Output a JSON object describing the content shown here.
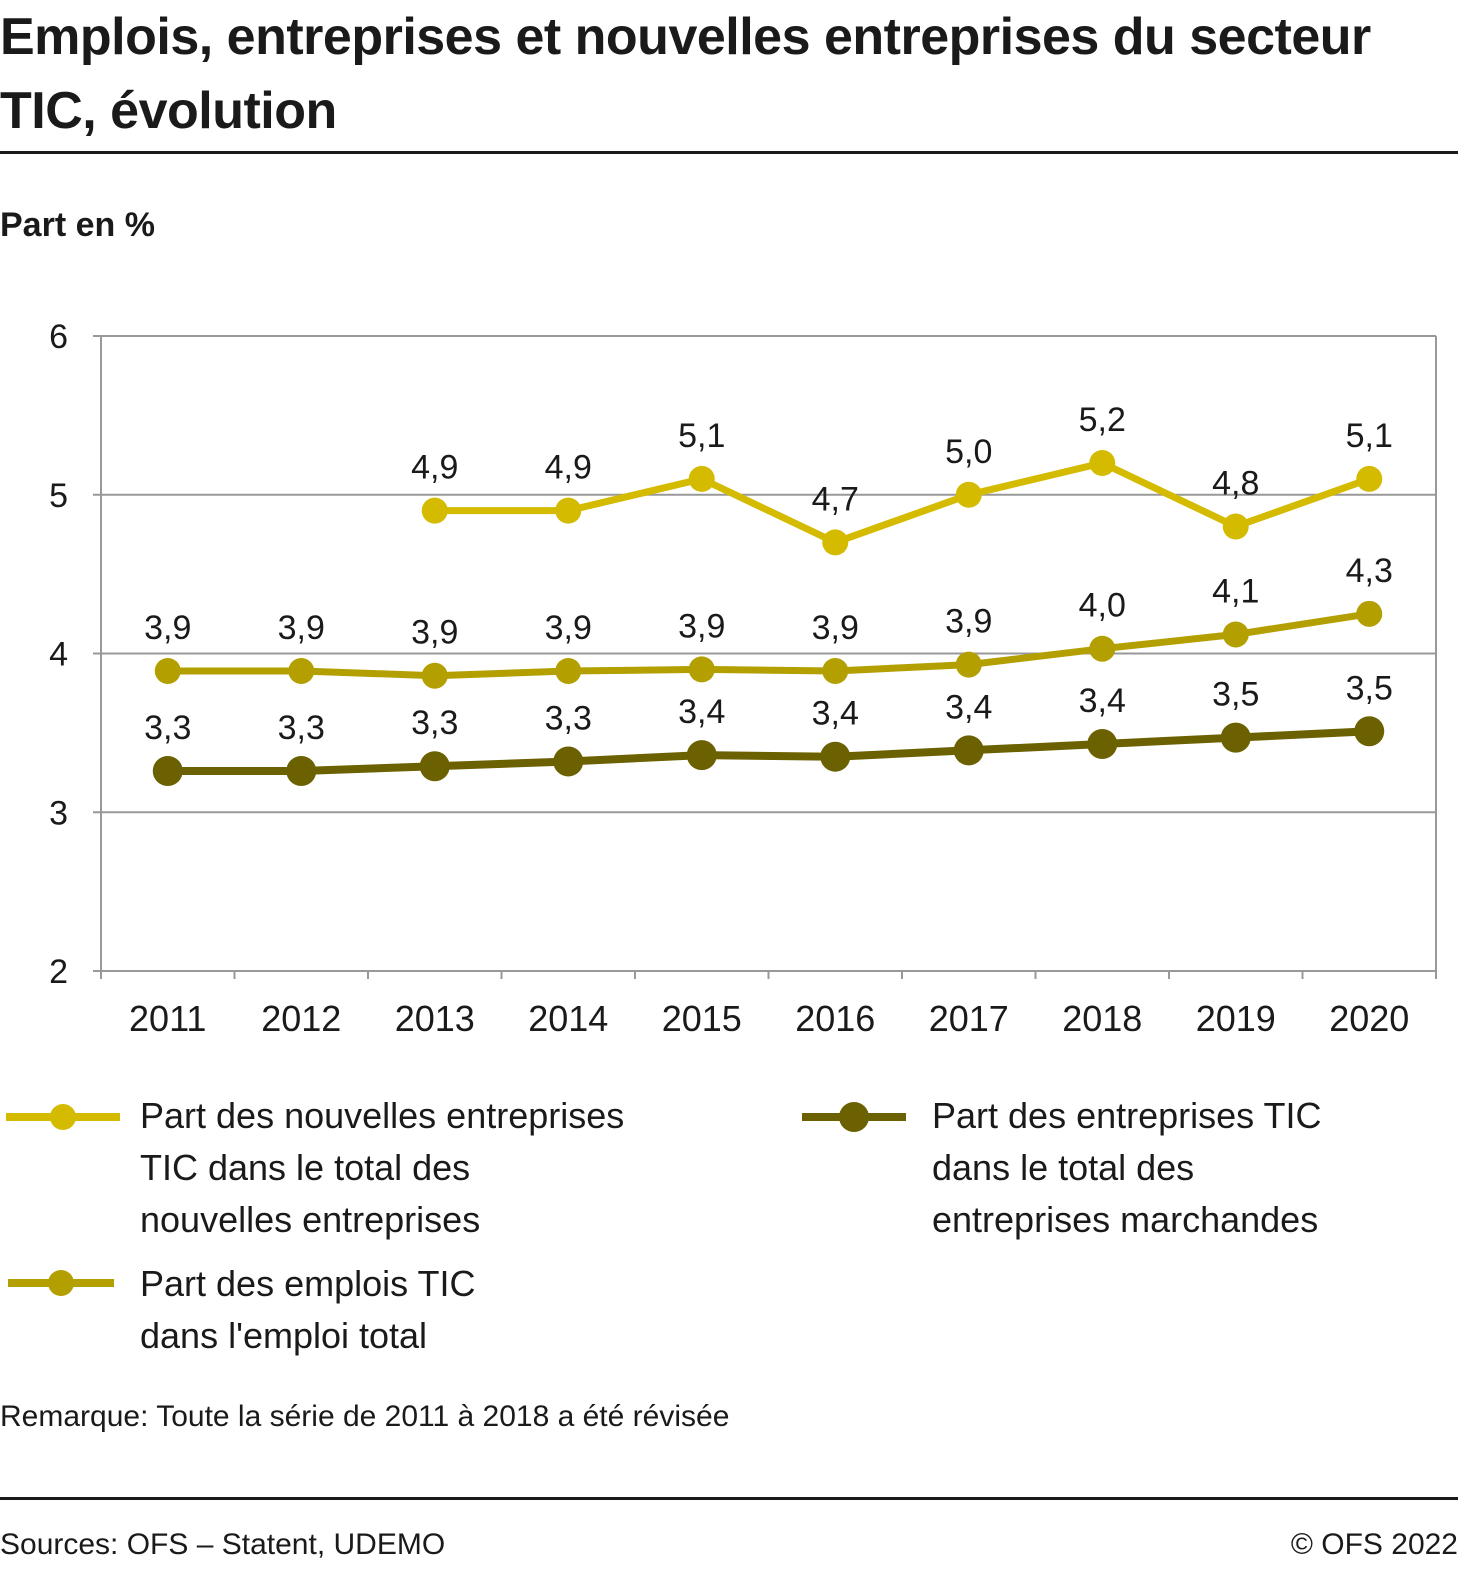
{
  "title": "Emplois, entreprises et nouvelles entreprises du secteur TIC, évolution",
  "y_axis_title": "Part en %",
  "note": "Remarque: Toute la série de 2011 à 2018 a été révisée",
  "source": "Sources: OFS – Statent, UDEMO",
  "copyright": "© OFS 2022",
  "colors": {
    "series_new_firms": "#d4bb00",
    "series_jobs": "#b3a000",
    "series_firms": "#6b6100",
    "grid": "#999999",
    "text": "#1a1a1a"
  },
  "chart_data": {
    "type": "line",
    "x": [
      "2011",
      "2012",
      "2013",
      "2014",
      "2015",
      "2016",
      "2017",
      "2018",
      "2019",
      "2020"
    ],
    "ylim": [
      2,
      6
    ],
    "yticks": [
      "2",
      "3",
      "4",
      "5",
      "6"
    ],
    "grid": true,
    "legend_position": "bottom",
    "series": [
      {
        "name": "Part des nouvelles entreprises TIC dans le total des nouvelles entreprises",
        "values": [
          null,
          null,
          4.9,
          4.9,
          5.1,
          4.7,
          5.0,
          5.2,
          4.8,
          5.1
        ],
        "labels": [
          "",
          "",
          "4,9",
          "4,9",
          "5,1",
          "4,7",
          "5,0",
          "5,2",
          "4,8",
          "5,1"
        ],
        "color": "#d4bb00"
      },
      {
        "name": "Part des emplois TIC dans l'emploi total",
        "values": [
          3.89,
          3.89,
          3.86,
          3.89,
          3.9,
          3.89,
          3.93,
          4.03,
          4.12,
          4.25
        ],
        "labels": [
          "3,9",
          "3,9",
          "3,9",
          "3,9",
          "3,9",
          "3,9",
          "3,9",
          "4,0",
          "4,1",
          "4,3"
        ],
        "color": "#b3a000"
      },
      {
        "name": "Part des entreprises TIC dans le total des entreprises marchandes",
        "values": [
          3.26,
          3.26,
          3.29,
          3.32,
          3.36,
          3.35,
          3.39,
          3.43,
          3.47,
          3.51
        ],
        "labels": [
          "3,3",
          "3,3",
          "3,3",
          "3,3",
          "3,4",
          "3,4",
          "3,4",
          "3,4",
          "3,5",
          "3,5"
        ],
        "color": "#6b6100"
      }
    ]
  },
  "legend": [
    {
      "lines": [
        "Part des nouvelles entreprises",
        "TIC dans le total des",
        "nouvelles entreprises"
      ],
      "color": "#d4bb00"
    },
    {
      "lines": [
        "Part des emplois TIC",
        "dans l'emploi total"
      ],
      "color": "#b3a000"
    },
    {
      "lines": [
        "Part des entreprises TIC",
        "dans le total des",
        "entreprises marchandes"
      ],
      "color": "#6b6100"
    }
  ]
}
